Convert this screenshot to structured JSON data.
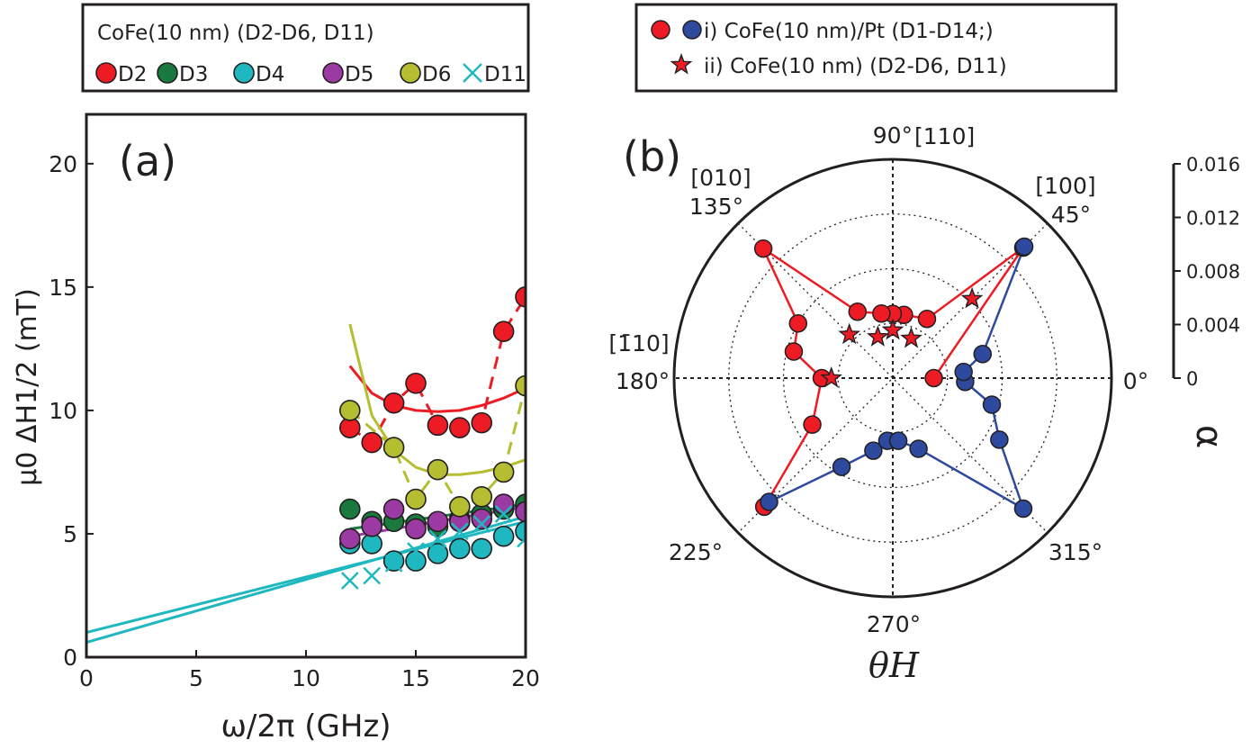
{
  "chart_data": [
    {
      "panel": "a",
      "type": "scatter",
      "panel_label": "(a)",
      "xlabel": "ω/2π (GHz)",
      "ylabel": "μ0 ΔH1/2 (mT)",
      "xlim": [
        0,
        20
      ],
      "ylim": [
        0,
        22
      ],
      "xticks": [
        "0",
        "5",
        "10",
        "15",
        "20"
      ],
      "yticks": [
        "0",
        "5",
        "10",
        "15",
        "20"
      ],
      "legend": {
        "title": "CoFe(10 nm) (D2-D6, D11)",
        "entries": [
          "D2",
          "D3",
          "D4",
          "D5",
          "D6",
          "D11"
        ]
      },
      "series": [
        {
          "name": "D2",
          "color": "#ed1c24",
          "marker": "circle",
          "x": [
            12,
            13,
            14,
            15,
            16,
            17,
            18,
            19,
            20
          ],
          "y": [
            9.3,
            8.7,
            10.3,
            11.1,
            9.4,
            9.3,
            9.5,
            13.2,
            14.6
          ],
          "fit": {
            "x": [
              12,
              13,
              14,
              15,
              16,
              17,
              18,
              19,
              20
            ],
            "y": [
              11.8,
              10.7,
              10.2,
              10.0,
              9.95,
              10.0,
              10.2,
              10.5,
              10.9
            ]
          }
        },
        {
          "name": "D3",
          "color": "#1a7a3e",
          "marker": "circle",
          "x": [
            12,
            13,
            14,
            15,
            16,
            17,
            18,
            19,
            20
          ],
          "y": [
            6.0,
            5.5,
            5.5,
            5.4,
            5.3,
            5.6,
            5.8,
            6.0,
            6.2
          ],
          "fit": {
            "x": [
              12,
              20
            ],
            "y": [
              5.2,
              6.2
            ]
          }
        },
        {
          "name": "D4",
          "color": "#1fb8c0",
          "marker": "circle",
          "x": [
            12,
            13,
            14,
            15,
            16,
            17,
            18,
            19,
            20
          ],
          "y": [
            4.6,
            4.6,
            3.9,
            3.9,
            4.2,
            4.4,
            4.4,
            4.9,
            5.1
          ],
          "fit": {
            "x": [
              0,
              20
            ],
            "y": [
              0.6,
              5.7
            ]
          }
        },
        {
          "name": "D5",
          "color": "#9c3aa3",
          "marker": "circle",
          "x": [
            12,
            13,
            14,
            15,
            16,
            17,
            18,
            19,
            20
          ],
          "y": [
            4.8,
            5.3,
            6.0,
            5.2,
            5.5,
            5.5,
            5.6,
            6.2,
            5.9
          ],
          "fit": {
            "x": [
              12,
              20
            ],
            "y": [
              4.9,
              6.1
            ]
          }
        },
        {
          "name": "D6",
          "color": "#b5bd31",
          "marker": "circle",
          "x": [
            12,
            14,
            15,
            16,
            17,
            18,
            19,
            20
          ],
          "y": [
            10.0,
            8.5,
            6.4,
            7.6,
            6.1,
            6.5,
            7.5,
            11.0
          ],
          "fit": {
            "x": [
              12,
              13,
              14,
              15,
              16,
              17,
              18,
              19,
              20
            ],
            "y": [
              13.5,
              9.8,
              8.4,
              7.7,
              7.4,
              7.4,
              7.5,
              7.7,
              8.0
            ]
          }
        },
        {
          "name": "D11",
          "color": "#1fb8c0",
          "marker": "x",
          "x": [
            12,
            13,
            14,
            15,
            16,
            17,
            18,
            19,
            20
          ],
          "y": [
            3.1,
            3.3,
            3.8,
            4.3,
            4.8,
            5.1,
            5.4,
            5.8,
            4.8
          ],
          "fit": {
            "x": [
              0,
              20
            ],
            "y": [
              1.0,
              5.5
            ]
          }
        }
      ]
    },
    {
      "panel": "b",
      "type": "polar",
      "panel_label": "(b)",
      "radial_label": "α",
      "angle_label": "θH",
      "rlim": [
        0,
        0.016
      ],
      "rticks": [
        "0",
        "0.004",
        "0.008",
        "0.012",
        "0.016"
      ],
      "angle_ticks": [
        "0°",
        "45°",
        "90°",
        "135°",
        "180°",
        "225°",
        "270°",
        "315°"
      ],
      "direction_labels": {
        "a90": "[110]",
        "a45": "[100]",
        "a135": "[010]",
        "a180": "[1̄10]"
      },
      "legend": {
        "entry1": "i) CoFe(10 nm)/Pt (D1-D14;)",
        "entry2": "ii) CoFe(10 nm) (D2-D6, D11)"
      },
      "series": [
        {
          "name": "i) CoFe(10 nm)/Pt (D1-D14;) red",
          "color": "#ed1c24",
          "marker": "circle",
          "theta": [
            0,
            45,
            60,
            80,
            90,
            100,
            118,
            135,
            150,
            165,
            180,
            210,
            225
          ],
          "r": [
            0.003,
            0.0135,
            0.005,
            0.0047,
            0.0047,
            0.0048,
            0.0055,
            0.0134,
            0.008,
            0.0075,
            0.0052,
            0.0068,
            0.0133
          ]
        },
        {
          "name": "i) CoFe(10 nm)/Pt (D1-D14;) blue",
          "color": "#2e4a9e",
          "marker": "circle",
          "theta": [
            225,
            240,
            255,
            265,
            275,
            290,
            315,
            330,
            345,
            357,
            5,
            15,
            45
          ],
          "r": [
            0.0128,
            0.0075,
            0.0055,
            0.0046,
            0.0046,
            0.0055,
            0.0135,
            0.009,
            0.0075,
            0.0053,
            0.0052,
            0.0068,
            0.0136
          ]
        },
        {
          "name": "ii) CoFe(10 nm) (D2-D6, D11)",
          "color": "#ed1c24",
          "marker": "star",
          "theta": [
            45,
            65,
            90,
            110,
            135,
            180
          ],
          "r": [
            0.0082,
            0.0032,
            0.0035,
            0.0032,
            0.0045,
            0.0045
          ]
        }
      ]
    }
  ]
}
